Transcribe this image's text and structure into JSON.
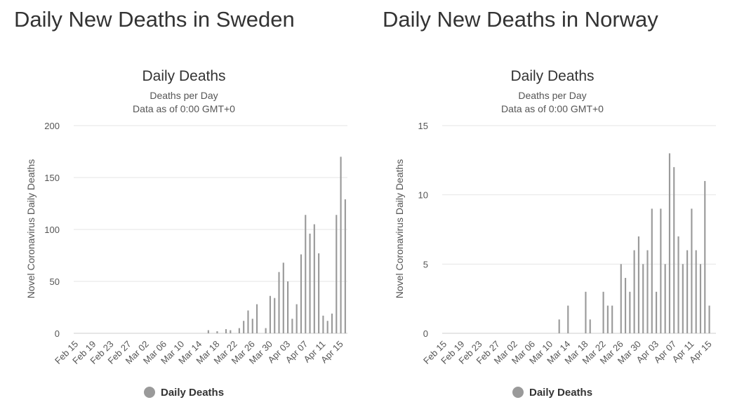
{
  "colors": {
    "bar": "#9a9a9a",
    "grid": "#e6e6e6",
    "axis": "#cccccc",
    "text": "#333333",
    "legend_swatch": "#9a9a9a"
  },
  "chart_data": [
    {
      "type": "bar",
      "heading": "Daily New Deaths in Sweden",
      "title": "Daily Deaths",
      "subtitle1": "Deaths per Day",
      "subtitle2": "Data as of 0:00 GMT+0",
      "ylabel": "Novel Coronavirus Daily Deaths",
      "ylim": [
        0,
        200
      ],
      "yticks": [
        0,
        50,
        100,
        150,
        200
      ],
      "start_date": "Feb 15",
      "xtick_labels": [
        "Feb 15",
        "Feb 19",
        "Feb 23",
        "Feb 27",
        "Mar 02",
        "Mar 06",
        "Mar 10",
        "Mar 14",
        "Mar 18",
        "Mar 22",
        "Mar 26",
        "Mar 30",
        "Apr 03",
        "Apr 07",
        "Apr 11",
        "Apr 15"
      ],
      "legend": "Daily Deaths",
      "grid": true,
      "values": [
        0,
        0,
        0,
        0,
        0,
        0,
        0,
        0,
        0,
        0,
        0,
        0,
        0,
        0,
        0,
        0,
        0,
        0,
        0,
        0,
        0,
        0,
        0,
        0,
        0,
        0,
        0,
        0,
        0,
        0,
        3,
        0,
        2,
        0,
        4,
        3,
        0,
        5,
        12,
        22,
        14,
        28,
        0,
        5,
        36,
        34,
        59,
        68,
        50,
        14,
        28,
        76,
        114,
        96,
        105,
        77,
        17,
        12,
        19,
        114,
        170,
        129
      ]
    },
    {
      "type": "bar",
      "heading": "Daily New Deaths in Norway",
      "title": "Daily Deaths",
      "subtitle1": "Deaths per Day",
      "subtitle2": "Data as of 0:00 GMT+0",
      "ylabel": "Novel Coronavirus Daily Deaths",
      "ylim": [
        0,
        15
      ],
      "yticks": [
        0,
        5,
        10,
        15
      ],
      "start_date": "Feb 15",
      "xtick_labels": [
        "Feb 15",
        "Feb 19",
        "Feb 23",
        "Feb 27",
        "Mar 02",
        "Mar 06",
        "Mar 10",
        "Mar 14",
        "Mar 18",
        "Mar 22",
        "Mar 26",
        "Mar 30",
        "Apr 03",
        "Apr 07",
        "Apr 11",
        "Apr 15"
      ],
      "legend": "Daily Deaths",
      "grid": true,
      "values": [
        0,
        0,
        0,
        0,
        0,
        0,
        0,
        0,
        0,
        0,
        0,
        0,
        0,
        0,
        0,
        0,
        0,
        0,
        0,
        0,
        0,
        0,
        0,
        0,
        0,
        0,
        1,
        0,
        2,
        0,
        0,
        0,
        3,
        1,
        0,
        0,
        3,
        2,
        2,
        0,
        5,
        4,
        3,
        6,
        7,
        5,
        6,
        9,
        3,
        9,
        5,
        13,
        12,
        7,
        5,
        6,
        9,
        6,
        5,
        11,
        2,
        0
      ]
    }
  ]
}
